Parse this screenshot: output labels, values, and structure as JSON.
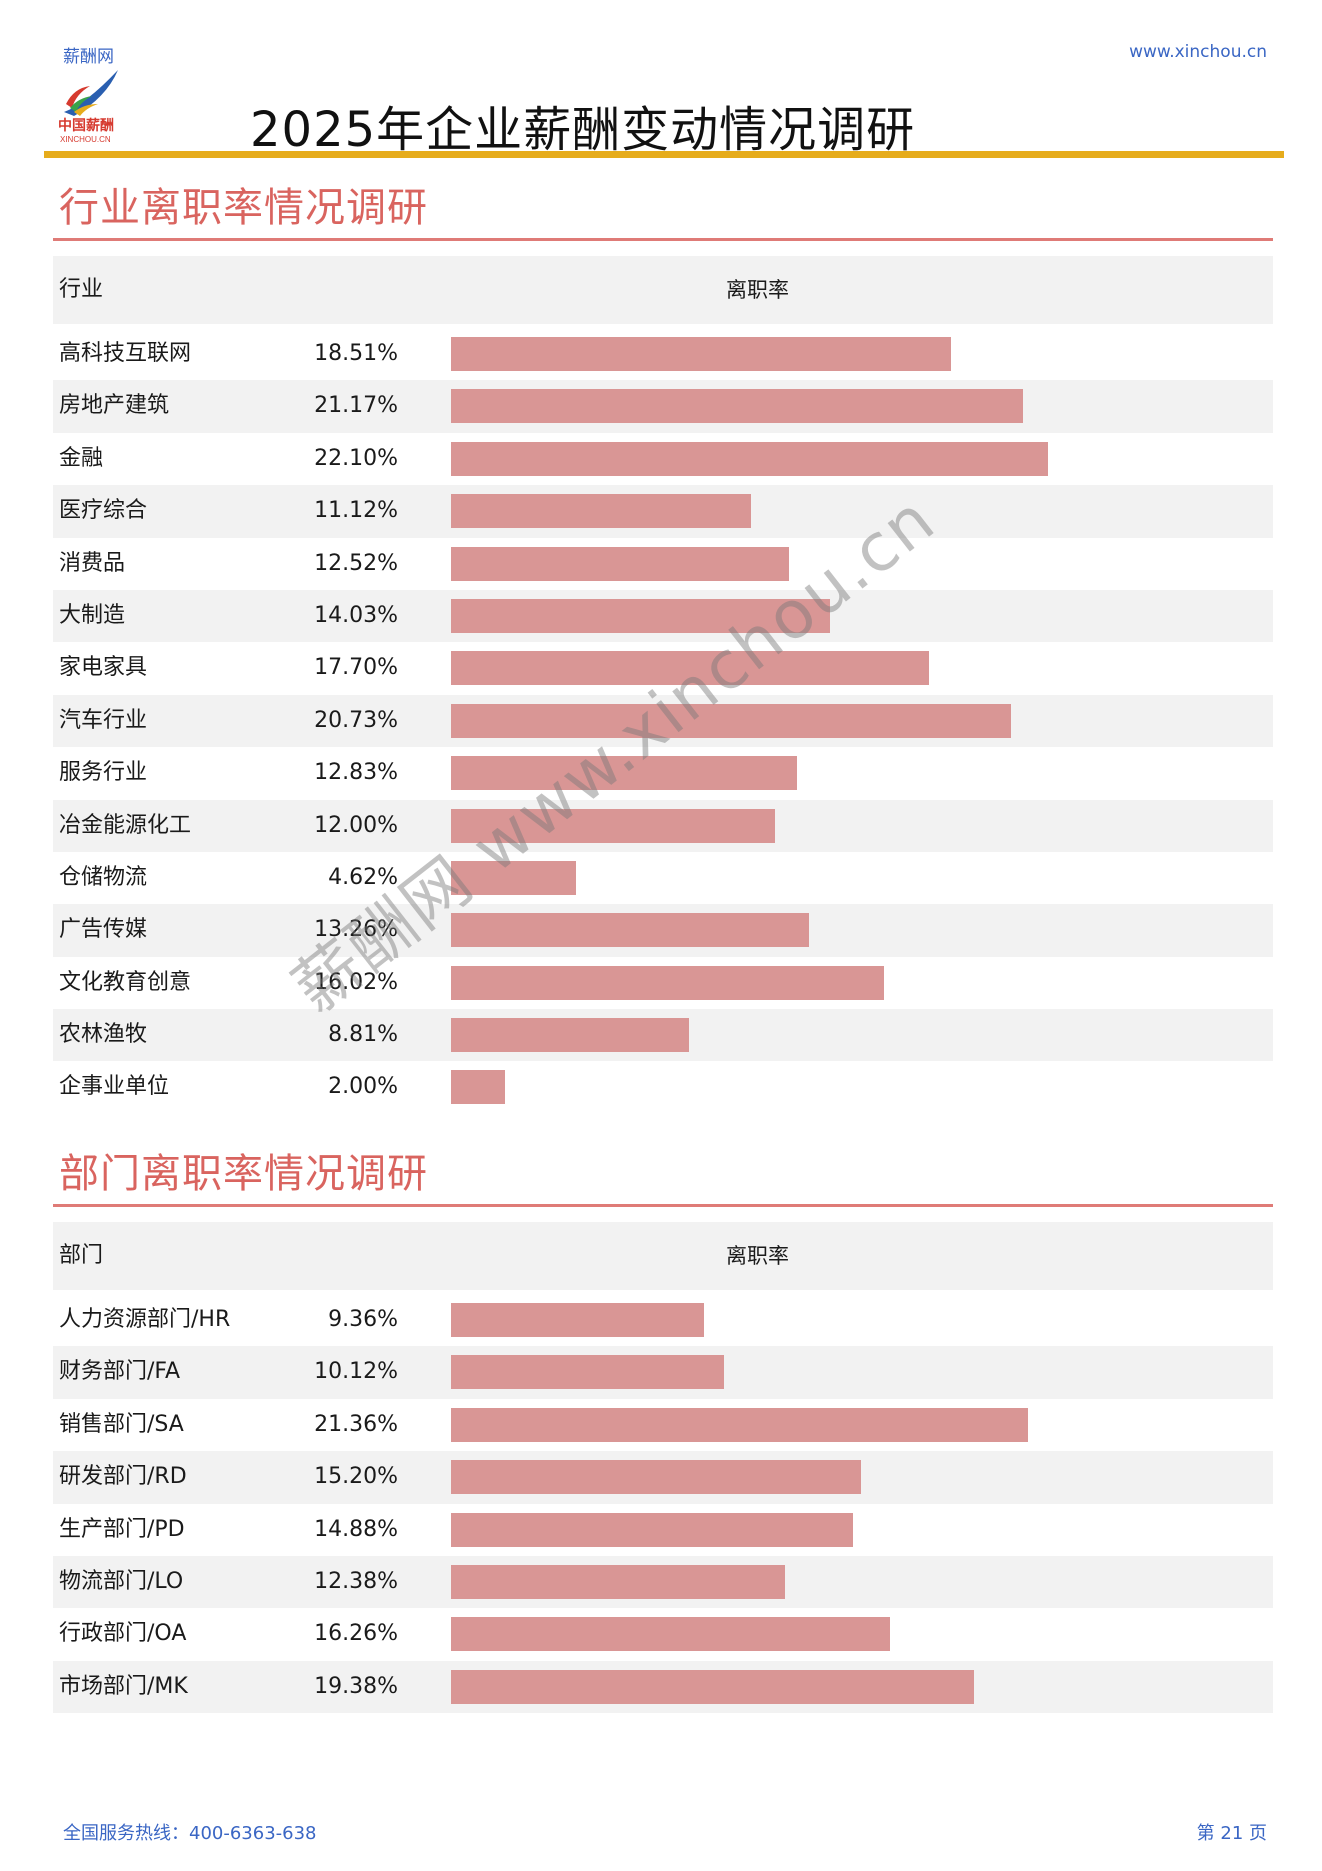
{
  "header": {
    "brand": "薪酬网",
    "url": "www.xinchou.cn",
    "logo_text_cn": "中国薪酬",
    "logo_text_en": "XINCHOU.CN",
    "title": "2025年企业薪酬变动情况调研"
  },
  "industry": {
    "section_title": "行业离职率情况调研",
    "col_label": "行业",
    "col_rate": "离职率",
    "rows": [
      {
        "label": "高科技互联网",
        "value": "18.51%",
        "rate": 18.51
      },
      {
        "label": "房地产建筑",
        "value": "21.17%",
        "rate": 21.17
      },
      {
        "label": "金融",
        "value": "22.10%",
        "rate": 22.1
      },
      {
        "label": "医疗综合",
        "value": "11.12%",
        "rate": 11.12
      },
      {
        "label": "消费品",
        "value": "12.52%",
        "rate": 12.52
      },
      {
        "label": "大制造",
        "value": "14.03%",
        "rate": 14.03
      },
      {
        "label": "家电家具",
        "value": "17.70%",
        "rate": 17.7
      },
      {
        "label": "汽车行业",
        "value": "20.73%",
        "rate": 20.73
      },
      {
        "label": "服务行业",
        "value": "12.83%",
        "rate": 12.83
      },
      {
        "label": "冶金能源化工",
        "value": "12.00%",
        "rate": 12.0
      },
      {
        "label": "仓储物流",
        "value": "4.62%",
        "rate": 4.62
      },
      {
        "label": "广告传媒",
        "value": "13.26%",
        "rate": 13.26
      },
      {
        "label": "文化教育创意",
        "value": "16.02%",
        "rate": 16.02
      },
      {
        "label": "农林渔牧",
        "value": "8.81%",
        "rate": 8.81
      },
      {
        "label": "企事业单位",
        "value": "2.00%",
        "rate": 2.0
      }
    ]
  },
  "department": {
    "section_title": "部门离职率情况调研",
    "col_label": "部门",
    "col_rate": "离职率",
    "rows": [
      {
        "label": "人力资源部门/HR",
        "value": "9.36%",
        "rate": 9.36
      },
      {
        "label": "财务部门/FA",
        "value": "10.12%",
        "rate": 10.12
      },
      {
        "label": "销售部门/SA",
        "value": "21.36%",
        "rate": 21.36
      },
      {
        "label": "研发部门/RD",
        "value": "15.20%",
        "rate": 15.2
      },
      {
        "label": "生产部门/PD",
        "value": "14.88%",
        "rate": 14.88
      },
      {
        "label": "物流部门/LO",
        "value": "12.38%",
        "rate": 12.38
      },
      {
        "label": "行政部门/OA",
        "value": "16.26%",
        "rate": 16.26
      },
      {
        "label": "市场部门/MK",
        "value": "19.38%",
        "rate": 19.38
      }
    ]
  },
  "watermark": "薪酬网 www.xinchou.cn",
  "footer": {
    "hotline": "全国服务热线：400-6363-638",
    "page": "第 21 页"
  },
  "colors": {
    "accent_gold": "#e6ac1c",
    "section_red": "#d9645f",
    "bar": "#d99695",
    "link_blue": "#3a66c4"
  }
}
